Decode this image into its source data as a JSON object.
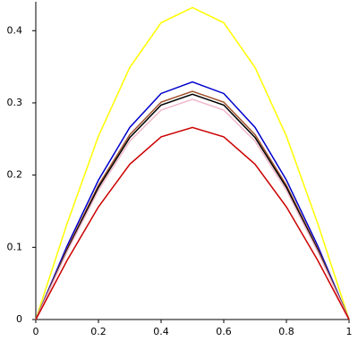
{
  "chart_data": {
    "type": "line",
    "x": [
      0,
      0.1,
      0.2,
      0.3,
      0.4,
      0.5,
      0.6,
      0.7,
      0.8,
      0.9,
      1
    ],
    "series": [
      {
        "color": "#ffff00",
        "values": [
          0,
          0.133,
          0.254,
          0.349,
          0.411,
          0.432,
          0.411,
          0.349,
          0.254,
          0.133,
          0
        ]
      },
      {
        "color": "#0000cc",
        "values": [
          0,
          0.102,
          0.193,
          0.266,
          0.313,
          0.329,
          0.313,
          0.266,
          0.193,
          0.102,
          0
        ]
      },
      {
        "color": "#a0522d",
        "values": [
          0,
          0.098,
          0.186,
          0.256,
          0.301,
          0.316,
          0.301,
          0.256,
          0.186,
          0.098,
          0
        ]
      },
      {
        "color": "#000000",
        "values": [
          0,
          0.096,
          0.183,
          0.252,
          0.297,
          0.312,
          0.297,
          0.252,
          0.183,
          0.096,
          0
        ]
      },
      {
        "color": "#f0b8c8",
        "values": [
          0,
          0.094,
          0.179,
          0.247,
          0.29,
          0.305,
          0.29,
          0.247,
          0.179,
          0.094,
          0
        ]
      },
      {
        "color": "#cc0000",
        "values": [
          0,
          0.082,
          0.156,
          0.215,
          0.253,
          0.266,
          0.253,
          0.215,
          0.156,
          0.082,
          0
        ]
      }
    ],
    "xlim": [
      0,
      1
    ],
    "ylim": [
      0,
      0.44
    ],
    "xticks": [
      0,
      0.2,
      0.4,
      0.6,
      0.8,
      1
    ],
    "yticks": [
      0,
      0.1,
      0.2,
      0.3,
      0.4
    ]
  }
}
